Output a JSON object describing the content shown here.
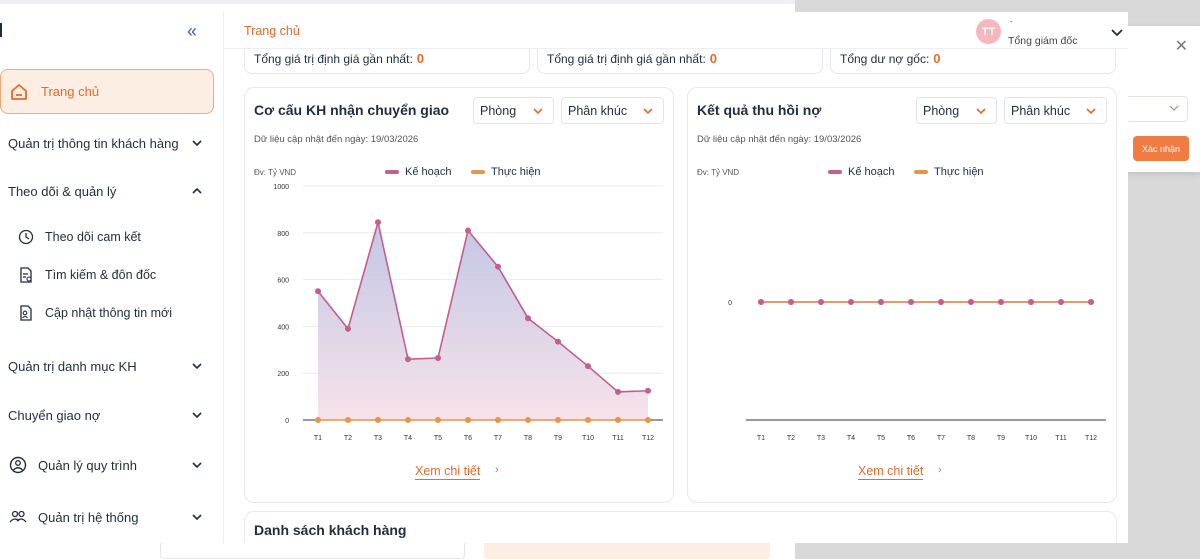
{
  "sidebar": {
    "home_label": "Trang chủ",
    "items": [
      {
        "label": "Quản trị thông tin khách hàng"
      },
      {
        "label": "Theo dõi & quản lý"
      },
      {
        "label": "Quản trị danh mục KH"
      },
      {
        "label": "Chuyển giao nợ"
      },
      {
        "label": "Quản lý quy trình"
      },
      {
        "label": "Quản trị hệ thống"
      }
    ],
    "subitems": [
      {
        "label": "Theo dõi cam kết"
      },
      {
        "label": "Tìm kiếm & đôn đốc"
      },
      {
        "label": "Cập nhật thông tin mới"
      }
    ]
  },
  "header": {
    "breadcrumb": "Trang chủ",
    "avatar_initials": "TT",
    "user_name": "-",
    "user_role": "Tổng giám đốc"
  },
  "summary": [
    {
      "label": "Tổng giá trị định giá gần nhất:",
      "value": "0"
    },
    {
      "label": "Tổng giá trị định giá gần nhất:",
      "value": "0"
    },
    {
      "label": "Tổng dư nợ gốc:",
      "value": "0"
    }
  ],
  "cards": [
    {
      "title": "Cơ cấu KH nhận chuyển giao",
      "updated": "Dữ liệu cập nhật đến ngày: 19/03/2026",
      "unit": "Đv: Tỷ VND",
      "dd1": "Phòng",
      "dd2": "Phân khúc",
      "more": "Xem chi tiết"
    },
    {
      "title": "Kết quả thu hồi nợ",
      "updated": "Dữ liệu cập nhật đến ngày: 19/03/2026",
      "unit": "Đv: Tỷ VND",
      "dd1": "Phòng",
      "dd2": "Phân khúc",
      "more": "Xem chi tiết"
    }
  ],
  "list_title": "Danh sách khách hàng",
  "popup": {
    "confirm_label": "Xác nhận"
  },
  "colors": {
    "accent": "#e8692a",
    "plan": "#c45e8e",
    "actual": "#e8944a"
  },
  "chart_data": [
    {
      "type": "area",
      "title": "Cơ cấu KH nhận chuyển giao",
      "x": [
        "T1",
        "T2",
        "T3",
        "T4",
        "T5",
        "T6",
        "T7",
        "T8",
        "T9",
        "T10",
        "T11",
        "T12"
      ],
      "yticks": [
        0,
        200,
        400,
        600,
        800,
        1000
      ],
      "ylim": [
        0,
        1000
      ],
      "grid": true,
      "legend": "top-center",
      "series": [
        {
          "name": "Kế hoạch",
          "values": [
            550,
            390,
            845,
            260,
            265,
            810,
            655,
            435,
            335,
            230,
            120,
            125
          ]
        },
        {
          "name": "Thực hiện",
          "values": [
            0,
            0,
            0,
            0,
            0,
            0,
            0,
            0,
            0,
            0,
            0,
            0
          ]
        }
      ]
    },
    {
      "type": "line",
      "title": "Kết quả thu hồi nợ",
      "x": [
        "T1",
        "T2",
        "T3",
        "T4",
        "T5",
        "T6",
        "T7",
        "T8",
        "T9",
        "T10",
        "T11",
        "T12"
      ],
      "yticks": [
        0
      ],
      "grid": false,
      "legend": "top-center",
      "series": [
        {
          "name": "Kế hoạch",
          "values": [
            0,
            0,
            0,
            0,
            0,
            0,
            0,
            0,
            0,
            0,
            0,
            0
          ]
        },
        {
          "name": "Thực hiện",
          "values": [
            0,
            0,
            0,
            0,
            0,
            0,
            0,
            0,
            0,
            0,
            0,
            0
          ]
        }
      ]
    }
  ]
}
